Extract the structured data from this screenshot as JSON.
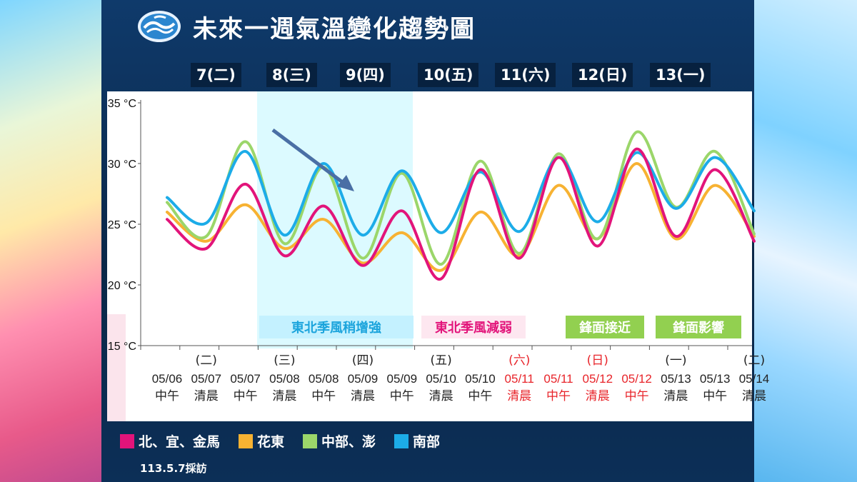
{
  "title": "未來一週氣溫變化趨勢圖",
  "date_note": "113.5.7採訪",
  "days": [
    "7(二)",
    "8(三)",
    "9(四)",
    "10(五)",
    "11(六)",
    "12(日)",
    "13(一)"
  ],
  "colors": {
    "north": "#e2147a",
    "hualien": "#f7b232",
    "central": "#9bd66a",
    "south": "#1cace8",
    "shade": "#dcfaff",
    "red_label": "#e8242a"
  },
  "chart_data": {
    "type": "line",
    "ylim": [
      15,
      35
    ],
    "yticks": [
      "15 °C",
      "20 °C",
      "25 °C",
      "30 °C",
      "35 °C"
    ],
    "x": [
      {
        "date": "05/06",
        "part": "中午",
        "weekday": "",
        "red": false
      },
      {
        "date": "05/07",
        "part": "清晨",
        "weekday": "(二)",
        "red": false
      },
      {
        "date": "05/07",
        "part": "中午",
        "weekday": "",
        "red": false
      },
      {
        "date": "05/08",
        "part": "清晨",
        "weekday": "(三)",
        "red": false
      },
      {
        "date": "05/08",
        "part": "中午",
        "weekday": "",
        "red": false
      },
      {
        "date": "05/09",
        "part": "清晨",
        "weekday": "(四)",
        "red": false
      },
      {
        "date": "05/09",
        "part": "中午",
        "weekday": "",
        "red": false
      },
      {
        "date": "05/10",
        "part": "清晨",
        "weekday": "(五)",
        "red": false
      },
      {
        "date": "05/10",
        "part": "中午",
        "weekday": "",
        "red": false
      },
      {
        "date": "05/11",
        "part": "清晨",
        "weekday": "(六)",
        "red": true
      },
      {
        "date": "05/11",
        "part": "中午",
        "weekday": "",
        "red": true
      },
      {
        "date": "05/12",
        "part": "清晨",
        "weekday": "(日)",
        "red": true
      },
      {
        "date": "05/12",
        "part": "中午",
        "weekday": "",
        "red": true
      },
      {
        "date": "05/13",
        "part": "清晨",
        "weekday": "(一)",
        "red": false
      },
      {
        "date": "05/13",
        "part": "中午",
        "weekday": "",
        "red": false
      },
      {
        "date": "05/14",
        "part": "清晨",
        "weekday": "(二)",
        "red": false
      }
    ],
    "series": [
      {
        "name": "北、宜、金馬",
        "key": "north",
        "values": [
          25.4,
          23.0,
          28.3,
          22.4,
          26.5,
          21.6,
          26.1,
          20.5,
          29.5,
          22.2,
          30.5,
          23.2,
          31.2,
          24.0,
          29.5,
          23.6
        ]
      },
      {
        "name": "花東",
        "key": "hualien",
        "values": [
          26.0,
          23.6,
          26.6,
          23.0,
          25.4,
          21.8,
          24.3,
          21.2,
          26.0,
          22.4,
          28.2,
          23.8,
          30.0,
          23.8,
          28.2,
          24.0
        ]
      },
      {
        "name": "中部、澎",
        "key": "central",
        "values": [
          26.8,
          24.0,
          31.8,
          23.4,
          29.7,
          22.2,
          29.2,
          21.7,
          30.2,
          22.6,
          30.8,
          23.8,
          32.6,
          26.4,
          31.0,
          24.2
        ]
      },
      {
        "name": "南部",
        "key": "south",
        "values": [
          27.2,
          25.1,
          31.0,
          24.1,
          30.0,
          24.1,
          29.4,
          24.3,
          29.3,
          24.4,
          30.5,
          25.2,
          30.9,
          26.3,
          30.5,
          26.1
        ]
      }
    ],
    "annotations": [
      {
        "text": "東北季風稍增強",
        "style": "cyan"
      },
      {
        "text": "東北季風減弱",
        "style": "pink"
      },
      {
        "text": "鋒面接近",
        "style": "green"
      },
      {
        "text": "鋒面影響",
        "style": "green"
      }
    ]
  }
}
